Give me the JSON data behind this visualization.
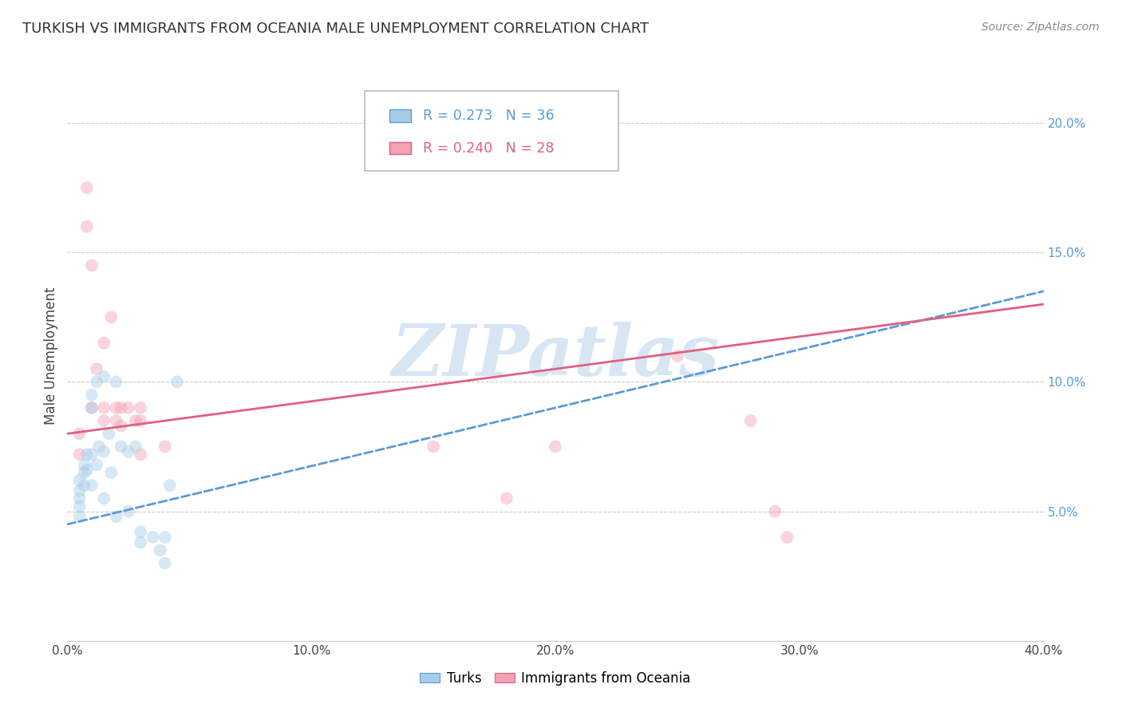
{
  "title": "TURKISH VS IMMIGRANTS FROM OCEANIA MALE UNEMPLOYMENT CORRELATION CHART",
  "source": "Source: ZipAtlas.com",
  "ylabel": "Male Unemployment",
  "x_min": 0.0,
  "x_max": 0.4,
  "y_min": 0.0,
  "y_max": 0.22,
  "x_ticks": [
    0.0,
    0.1,
    0.2,
    0.3,
    0.4
  ],
  "x_tick_labels": [
    "0.0%",
    "10.0%",
    "20.0%",
    "30.0%",
    "40.0%"
  ],
  "y_ticks": [
    0.05,
    0.1,
    0.15,
    0.2
  ],
  "y_tick_labels": [
    "5.0%",
    "10.0%",
    "15.0%",
    "20.0%"
  ],
  "turks_x": [
    0.005,
    0.005,
    0.005,
    0.005,
    0.005,
    0.007,
    0.007,
    0.007,
    0.008,
    0.008,
    0.01,
    0.01,
    0.01,
    0.01,
    0.012,
    0.012,
    0.013,
    0.015,
    0.015,
    0.015,
    0.017,
    0.018,
    0.02,
    0.02,
    0.022,
    0.025,
    0.025,
    0.028,
    0.03,
    0.03,
    0.035,
    0.038,
    0.04,
    0.04,
    0.042,
    0.045
  ],
  "turks_y": [
    0.062,
    0.058,
    0.055,
    0.052,
    0.048,
    0.068,
    0.065,
    0.06,
    0.072,
    0.066,
    0.095,
    0.09,
    0.072,
    0.06,
    0.1,
    0.068,
    0.075,
    0.102,
    0.073,
    0.055,
    0.08,
    0.065,
    0.1,
    0.048,
    0.075,
    0.073,
    0.05,
    0.075,
    0.042,
    0.038,
    0.04,
    0.035,
    0.04,
    0.03,
    0.06,
    0.1
  ],
  "oceania_x": [
    0.005,
    0.005,
    0.008,
    0.008,
    0.01,
    0.01,
    0.012,
    0.015,
    0.015,
    0.015,
    0.018,
    0.02,
    0.02,
    0.022,
    0.022,
    0.025,
    0.028,
    0.03,
    0.03,
    0.03,
    0.04,
    0.15,
    0.18,
    0.2,
    0.25,
    0.28,
    0.29,
    0.295
  ],
  "oceania_y": [
    0.08,
    0.072,
    0.175,
    0.16,
    0.145,
    0.09,
    0.105,
    0.115,
    0.09,
    0.085,
    0.125,
    0.09,
    0.085,
    0.09,
    0.083,
    0.09,
    0.085,
    0.09,
    0.085,
    0.072,
    0.075,
    0.075,
    0.055,
    0.075,
    0.11,
    0.085,
    0.05,
    0.04
  ],
  "turks_color": "#A8CCE8",
  "oceania_color": "#F4A0B5",
  "turks_line_color": "#5B9BD5",
  "oceania_line_color": "#E06080",
  "turks_line_start_y": 0.045,
  "turks_line_end_y": 0.135,
  "oceania_line_start_y": 0.08,
  "oceania_line_end_y": 0.13,
  "R_turks": 0.273,
  "N_turks": 36,
  "R_oceania": 0.24,
  "N_oceania": 28,
  "legend_turks": "Turks",
  "legend_oceania": "Immigrants from Oceania",
  "marker_size": 130,
  "marker_alpha": 0.45,
  "watermark_text": "ZIPatlas",
  "watermark_color": "#C8DCF0",
  "background_color": "#ffffff",
  "grid_color": "#cccccc",
  "title_fontsize": 13,
  "label_fontsize": 12,
  "tick_fontsize": 11,
  "right_axis_tick_color": "#5B9BD5"
}
